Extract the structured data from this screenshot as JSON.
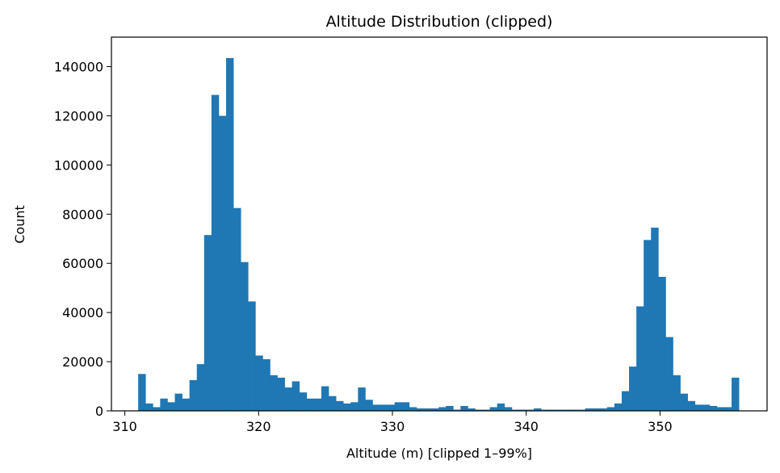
{
  "chart_data": {
    "type": "bar",
    "title": "Altitude Distribution (clipped)",
    "xlabel": "Altitude (m) [clipped 1–99%]",
    "ylabel": "Count",
    "xlim": [
      309,
      358
    ],
    "ylim": [
      0,
      152000
    ],
    "xticks": [
      310,
      320,
      330,
      340,
      350
    ],
    "yticks": [
      0,
      20000,
      40000,
      60000,
      80000,
      100000,
      120000,
      140000
    ],
    "grid": false,
    "bar_color": "#1f77b4",
    "bin_start": 311.0,
    "bin_width": 0.5475,
    "values": [
      15000,
      3000,
      1500,
      5000,
      3500,
      7000,
      5000,
      12500,
      19000,
      71500,
      128500,
      120000,
      143500,
      82500,
      60500,
      44500,
      22500,
      21000,
      14500,
      13500,
      9500,
      12000,
      7500,
      5000,
      5000,
      10000,
      6000,
      4000,
      3000,
      3500,
      9500,
      4500,
      2500,
      2500,
      2500,
      3500,
      3500,
      1500,
      1000,
      1000,
      1000,
      1500,
      2000,
      500,
      2000,
      1000,
      500,
      500,
      1500,
      3000,
      1500,
      500,
      500,
      500,
      1000,
      500,
      500,
      500,
      500,
      500,
      500,
      1000,
      1000,
      1000,
      1500,
      3000,
      8000,
      18000,
      42500,
      69500,
      74500,
      54500,
      30000,
      14500,
      7000,
      4000,
      2500,
      2500,
      2000,
      1500,
      1500,
      13500
    ]
  }
}
